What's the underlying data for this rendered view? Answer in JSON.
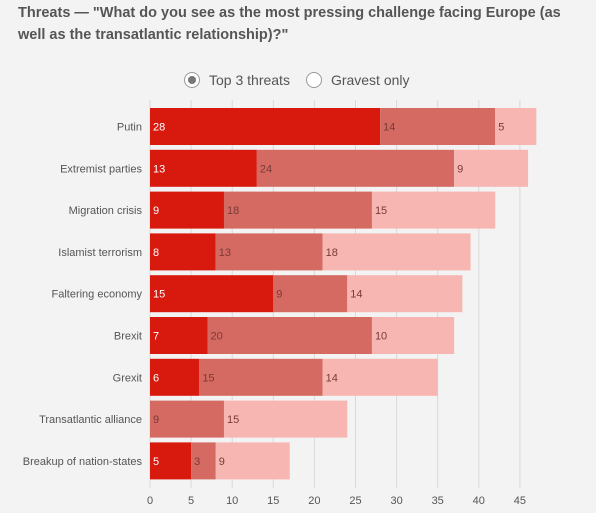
{
  "title": "Threats — \"What do you see as the most pressing challenge facing Europe (as well as the transatlantic relationship)?\"",
  "toggle": {
    "options": [
      {
        "label": "Top 3 threats",
        "selected": true
      },
      {
        "label": "Gravest only",
        "selected": false
      }
    ]
  },
  "colors": {
    "rank1": "#d8190e",
    "rank2": "#d46a61",
    "rank3": "#f7b6b1",
    "grid": "#d9d9d9",
    "label": "#555555"
  },
  "chart_data": {
    "type": "bar",
    "orientation": "horizontal",
    "stacked": true,
    "categories": [
      "Putin",
      "Extremist parties",
      "Migration crisis",
      "Islamist terrorism",
      "Faltering economy",
      "Brexit",
      "Grexit",
      "Transatlantic alliance",
      "Breakup of nation-states"
    ],
    "series": [
      {
        "values": [
          28,
          13,
          9,
          8,
          15,
          7,
          6,
          0,
          5
        ]
      },
      {
        "values": [
          14,
          24,
          18,
          13,
          9,
          20,
          15,
          9,
          3
        ]
      },
      {
        "values": [
          5,
          9,
          15,
          18,
          14,
          10,
          14,
          15,
          9
        ]
      }
    ],
    "xlim": [
      0,
      47
    ],
    "xticks": [
      0,
      5,
      10,
      15,
      20,
      25,
      30,
      35,
      40,
      45
    ],
    "grid": true
  }
}
